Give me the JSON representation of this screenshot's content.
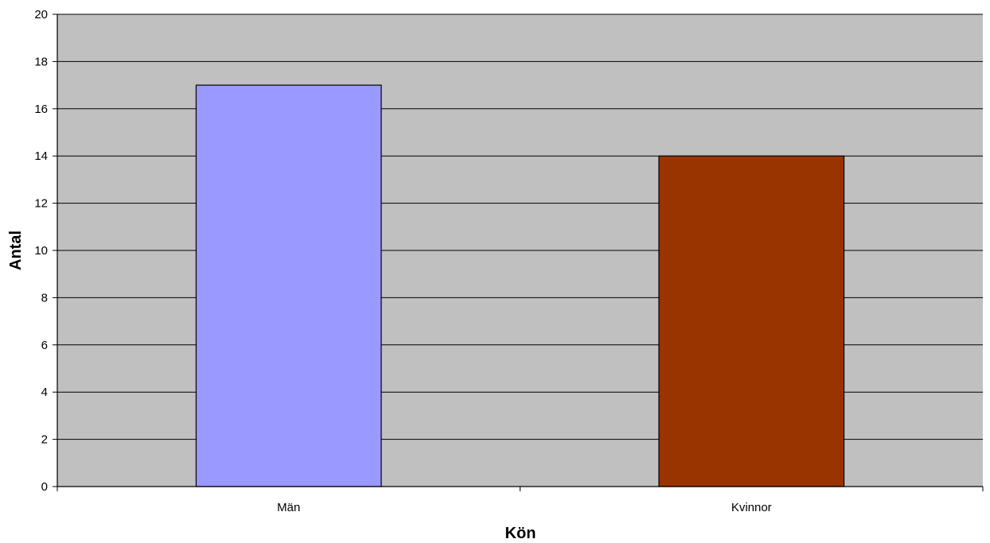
{
  "chart_data": {
    "type": "bar",
    "title": "",
    "xlabel": "Kön",
    "ylabel": "Antal",
    "categories": [
      "Män",
      "Kvinnor"
    ],
    "values": [
      17,
      14
    ],
    "colors": [
      "#9999FF",
      "#993300"
    ],
    "ylim": [
      0,
      20
    ],
    "ytick_step": 2,
    "yticks": [
      "0",
      "2",
      "4",
      "6",
      "8",
      "10",
      "12",
      "14",
      "16",
      "18",
      "20"
    ],
    "grid": true,
    "legend": "none",
    "plot_background": "#C0C0C0"
  }
}
